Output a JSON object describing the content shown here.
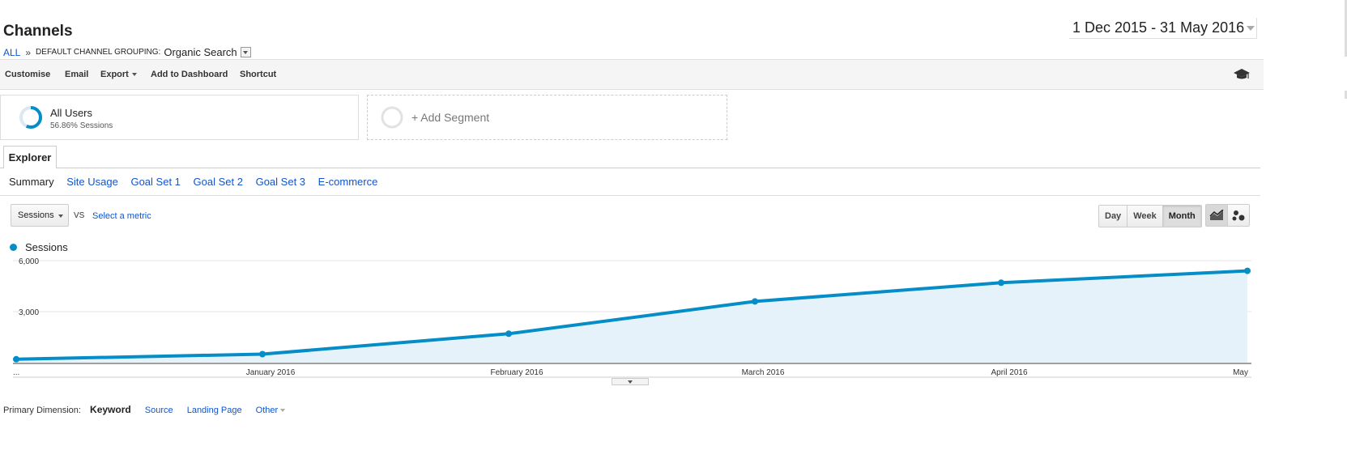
{
  "header": {
    "title": "Channels",
    "breadcrumb": {
      "root": "ALL",
      "separator": "»",
      "group_label": "DEFAULT CHANNEL GROUPING:",
      "group_value": "Organic Search"
    },
    "date_range": "1 Dec 2015 - 31 May 2016"
  },
  "toolbar": {
    "customise": "Customise",
    "email": "Email",
    "export": "Export",
    "add_dashboard": "Add to Dashboard",
    "shortcut": "Shortcut",
    "education_icon": "graduation-cap-icon"
  },
  "segments": {
    "all_users": {
      "name": "All Users",
      "sub": "56.86% Sessions",
      "percent": 56.86
    },
    "add_segment": "+ Add Segment"
  },
  "explorer_tab": "Explorer",
  "subtabs": [
    "Summary",
    "Site Usage",
    "Goal Set 1",
    "Goal Set 2",
    "Goal Set 3",
    "E-commerce"
  ],
  "metric": {
    "selected": "Sessions",
    "vs": "VS",
    "select_metric": "Select a metric"
  },
  "period": {
    "options": [
      "Day",
      "Week",
      "Month"
    ],
    "active": "Month"
  },
  "legend": "Sessions",
  "colors": {
    "accent": "#058dc7",
    "area": "#e6f2f9",
    "link": "#1155cc"
  },
  "chart_data": {
    "type": "area",
    "x": [
      "...",
      "January 2016",
      "February 2016",
      "March 2016",
      "April 2016",
      "May"
    ],
    "series": [
      {
        "name": "Sessions",
        "values": [
          200,
          500,
          1700,
          3600,
          4700,
          5400
        ]
      }
    ],
    "yticks": [
      "6,000",
      "3,000"
    ],
    "ylim": [
      0,
      6000
    ],
    "grid": true,
    "legend_position": "top-left"
  },
  "primary_dimension": {
    "label": "Primary Dimension:",
    "current": "Keyword",
    "options": [
      "Source",
      "Landing Page",
      "Other"
    ]
  }
}
